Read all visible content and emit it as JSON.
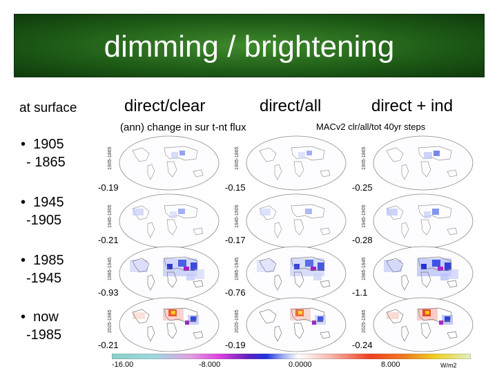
{
  "title": "dimming / brightening",
  "headers": {
    "surface": "at surface",
    "c1": "direct/clear",
    "c2": "direct/all",
    "c3": "direct + ind"
  },
  "bullets": [
    {
      "line1": "1905",
      "line2": "- 1865"
    },
    {
      "line1": "1945",
      "line2": "-1905"
    },
    {
      "line1": "1985",
      "line2": "-1945"
    },
    {
      "line1": "now",
      "line2": "-1985"
    }
  ],
  "panel": {
    "title": "(ann) change in sur t-nt flux",
    "subtitle": "MACv2 clr/all/tot  40yr steps",
    "rows": [
      {
        "label": "1905-1865",
        "values": [
          "-0.19",
          "-0.15",
          "-0.25"
        ]
      },
      {
        "label": "1945-1905",
        "values": [
          "-0.21",
          "-0.17",
          "-0.28"
        ]
      },
      {
        "label": "1985-1945",
        "values": [
          "-0.93",
          "-0.76",
          "-1.1"
        ]
      },
      {
        "label": "2025-1985",
        "values": [
          "-0.21",
          "-0.19",
          "-0.24"
        ]
      }
    ],
    "colorbar": {
      "ticks": [
        "-16.00",
        "-8.000",
        "0.0000",
        "8.000"
      ],
      "unit": "W/m2"
    }
  }
}
